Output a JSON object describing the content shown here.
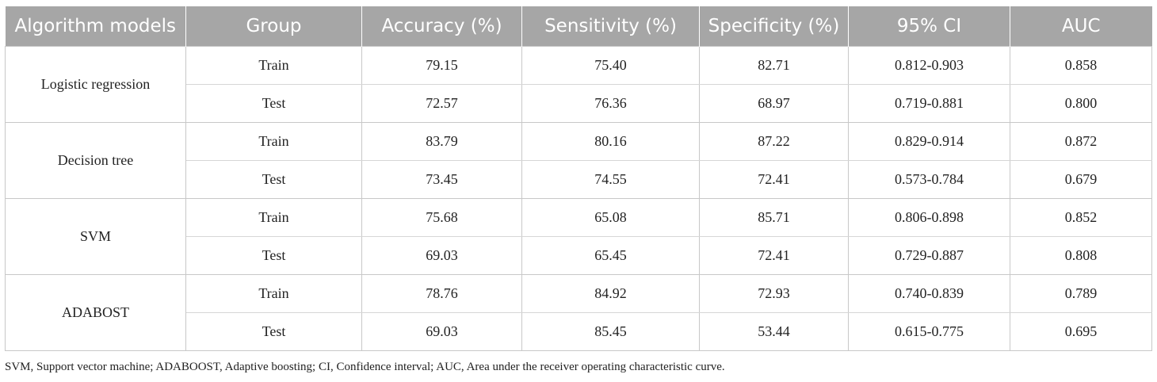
{
  "table": {
    "headers": [
      "Algorithm models",
      "Group",
      "Accuracy (%)",
      "Sensitivity (%)",
      "Specificity (%)",
      "95% CI",
      "AUC"
    ],
    "models": [
      {
        "name": "Logistic regression",
        "rows": [
          {
            "group": "Train",
            "accuracy": "79.15",
            "sensitivity": "75.40",
            "specificity": "82.71",
            "ci": "0.812-0.903",
            "auc": "0.858"
          },
          {
            "group": "Test",
            "accuracy": "72.57",
            "sensitivity": "76.36",
            "specificity": "68.97",
            "ci": "0.719-0.881",
            "auc": "0.800"
          }
        ]
      },
      {
        "name": "Decision tree",
        "rows": [
          {
            "group": "Train",
            "accuracy": "83.79",
            "sensitivity": "80.16",
            "specificity": "87.22",
            "ci": "0.829-0.914",
            "auc": "0.872"
          },
          {
            "group": "Test",
            "accuracy": "73.45",
            "sensitivity": "74.55",
            "specificity": "72.41",
            "ci": "0.573-0.784",
            "auc": "0.679"
          }
        ]
      },
      {
        "name": "SVM",
        "rows": [
          {
            "group": "Train",
            "accuracy": "75.68",
            "sensitivity": "65.08",
            "specificity": "85.71",
            "ci": "0.806-0.898",
            "auc": "0.852"
          },
          {
            "group": "Test",
            "accuracy": "69.03",
            "sensitivity": "65.45",
            "specificity": "72.41",
            "ci": "0.729-0.887",
            "auc": "0.808"
          }
        ]
      },
      {
        "name": "ADABOST",
        "rows": [
          {
            "group": "Train",
            "accuracy": "78.76",
            "sensitivity": "84.92",
            "specificity": "72.93",
            "ci": "0.740-0.839",
            "auc": "0.789"
          },
          {
            "group": "Test",
            "accuracy": "69.03",
            "sensitivity": "85.45",
            "specificity": "53.44",
            "ci": "0.615-0.775",
            "auc": "0.695"
          }
        ]
      }
    ]
  },
  "footnote": "SVM, Support vector machine; ADABOOST, Adaptive boosting; CI, Confidence interval; AUC, Area under the receiver operating characteristic curve."
}
